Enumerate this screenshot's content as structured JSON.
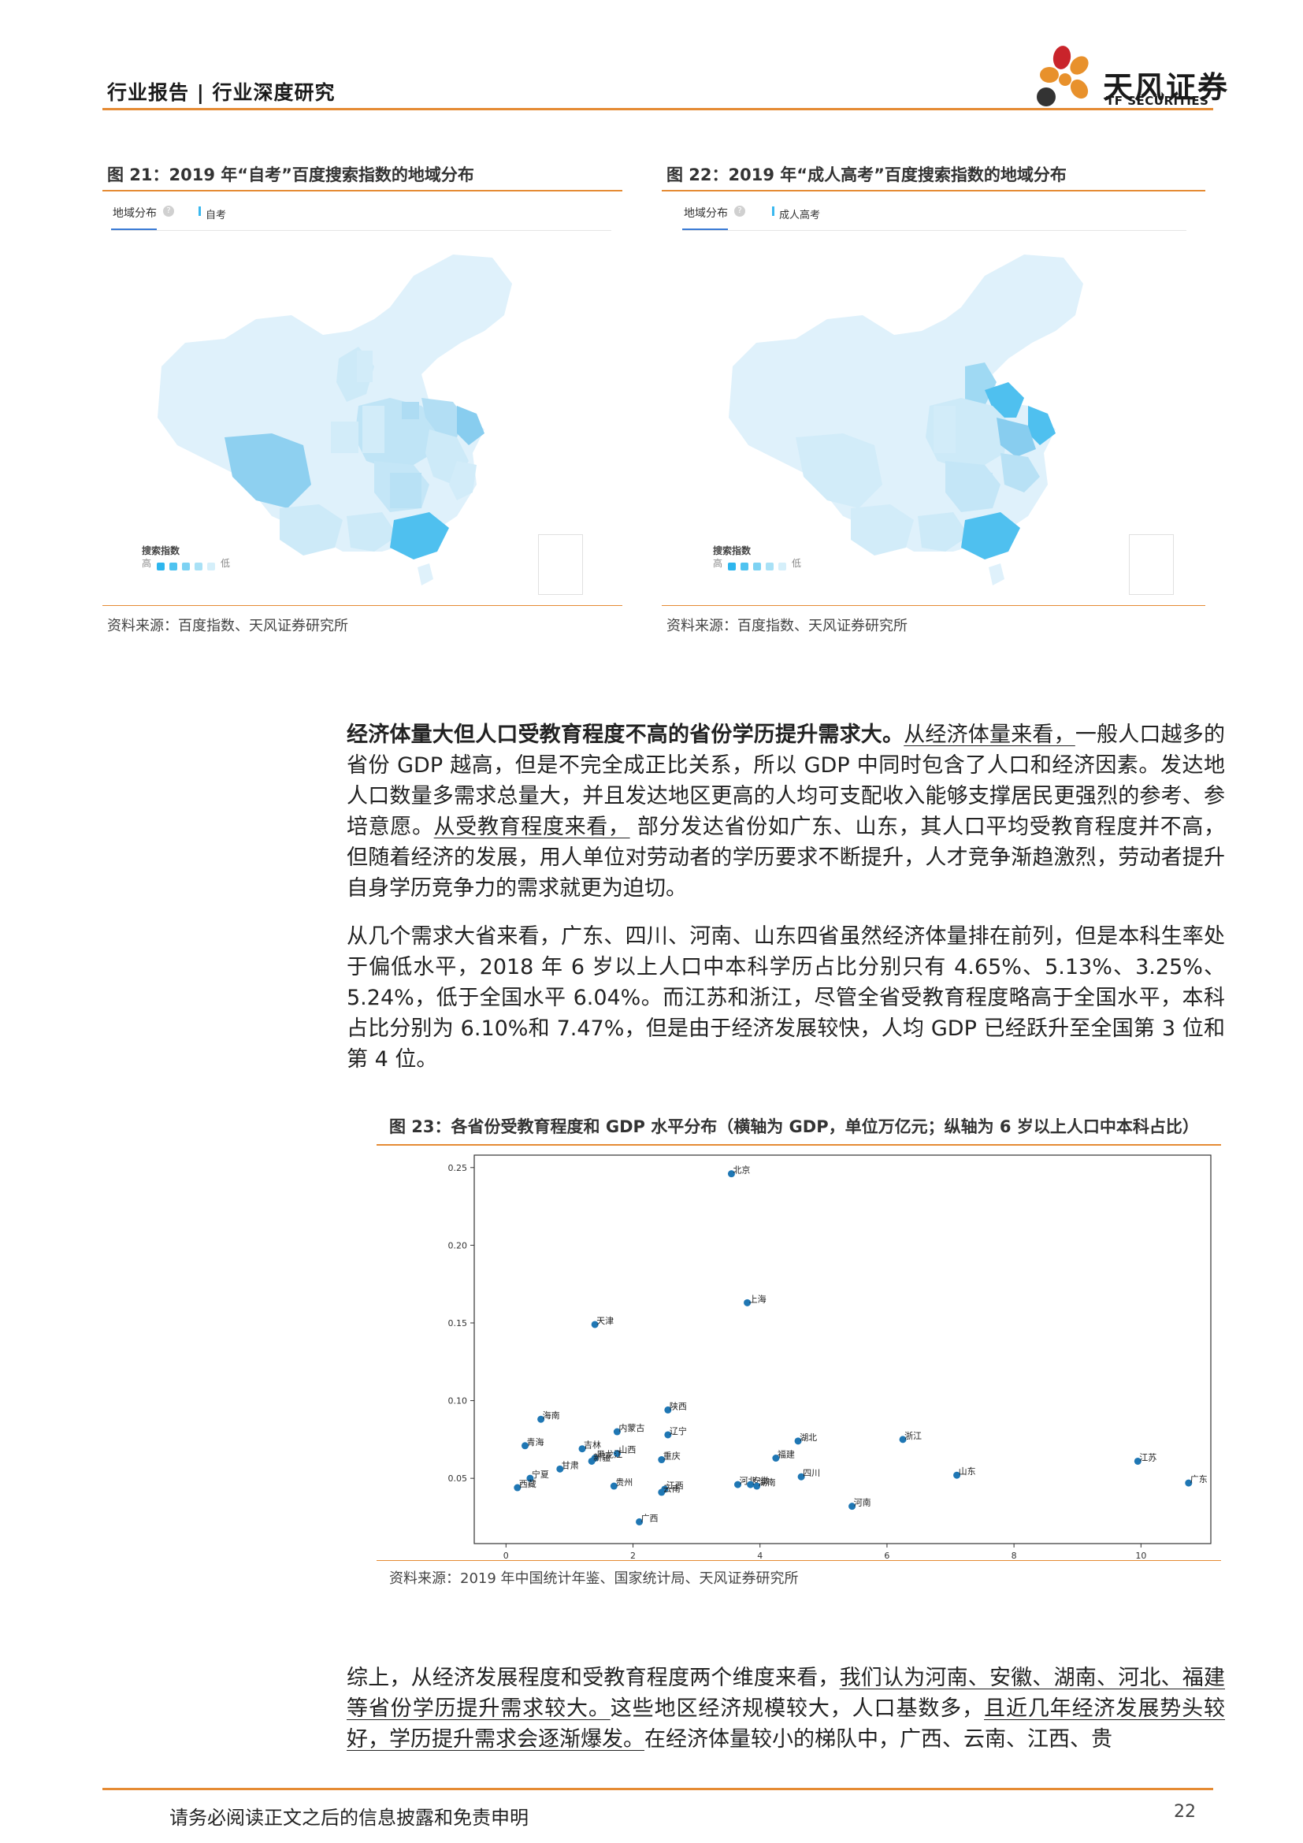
{
  "header": {
    "title": "行业报告 | 行业深度研究",
    "logo_cn": "天风证券",
    "logo_en": "TF SECURITIES"
  },
  "figure21": {
    "title": "图 21：2019 年“自考”百度搜索指数的地域分布",
    "tab_label": "地域分布",
    "series_label": "自考",
    "legend_title": "搜索指数",
    "legend_high": "高",
    "legend_low": "低",
    "source": "资料来源：百度指数、天风证券研究所"
  },
  "figure22": {
    "title": "图 22：2019 年“成人高考”百度搜索指数的地域分布",
    "tab_label": "地域分布",
    "series_label": "成人高考",
    "legend_title": "搜索指数",
    "legend_high": "高",
    "legend_low": "低",
    "source": "资料来源：百度指数、天风证券研究所"
  },
  "body": {
    "p1_bold": "经济体量大但人口受教育程度不高的省份学历提升需求大。",
    "p1_a": "从经济体量来看，",
    "p1_b": "一般人口越多的省份 GDP 越高，但是不完全成正比关系，所以 GDP 中同时包含了人口和经济因素。发达地人口数量多需求总量大，并且发达地区更高的人均可支配收入能够支撑居民更强烈的参考、参培意愿。",
    "p1_c": "从受教育程度来看，",
    "p1_d": " 部分发达省份如广东、山东，其人口平均受教育程度并不高，但随着经济的发展，用人单位对劳动者的学历要求不断提升，人才竞争渐趋激烈，劳动者提升自身学历竞争力的需求就更为迫切。",
    "p2": "从几个需求大省来看，广东、四川、河南、山东四省虽然经济体量排在前列，但是本科生率处于偏低水平，2018 年 6 岁以上人口中本科学历占比分别只有 4.65%、5.13%、3.25%、5.24%，低于全国水平 6.04%。而江苏和浙江，尽管全省受教育程度略高于全国水平，本科占比分别为 6.10%和 7.47%，但是由于经济发展较快，人均 GDP 已经跃升至全国第 3 位和第 4 位。",
    "p3_a": "综上，从经济发展程度和受教育程度两个维度来看，",
    "p3_b": "我们认为河南、安徽、湖南、河北、福建等省份学历提升需求较大。",
    "p3_c": "这些地区经济规模较大，人口基数多，",
    "p3_d": "且近几年经济发展势头较好，学历提升需求会逐渐爆发。",
    "p3_e": "在经济体量较小的梯队中，广西、云南、江西、贵"
  },
  "figure23": {
    "title": "图 23：各省份受教育程度和 GDP 水平分布（横轴为 GDP，单位万亿元；纵轴为 6 岁以上人口中本科占比）",
    "source": "资料来源：2019 年中国统计年鉴、国家统计局、天风证券研究所"
  },
  "chart_data": {
    "type": "scatter",
    "xlim": [
      -0.5,
      11.1
    ],
    "ylim": [
      0.008,
      0.258
    ],
    "xticks": [
      0,
      2,
      4,
      6,
      8,
      10
    ],
    "yticks": [
      0.05,
      0.1,
      0.15,
      0.2,
      0.25
    ],
    "grid": false,
    "point_color": "#1f77b4",
    "points": [
      {
        "label": "北京",
        "x": 3.55,
        "y": 0.246
      },
      {
        "label": "上海",
        "x": 3.8,
        "y": 0.163
      },
      {
        "label": "天津",
        "x": 1.4,
        "y": 0.149
      },
      {
        "label": "海南",
        "x": 0.55,
        "y": 0.088
      },
      {
        "label": "陕西",
        "x": 2.55,
        "y": 0.094
      },
      {
        "label": "内蒙古",
        "x": 1.75,
        "y": 0.08
      },
      {
        "label": "辽宁",
        "x": 2.55,
        "y": 0.078
      },
      {
        "label": "青海",
        "x": 0.3,
        "y": 0.071
      },
      {
        "label": "吉林",
        "x": 1.2,
        "y": 0.069
      },
      {
        "label": "山西",
        "x": 1.75,
        "y": 0.066
      },
      {
        "label": "黑龙江",
        "x": 1.4,
        "y": 0.063
      },
      {
        "label": "新疆",
        "x": 1.35,
        "y": 0.061
      },
      {
        "label": "重庆",
        "x": 2.45,
        "y": 0.062
      },
      {
        "label": "甘肃",
        "x": 0.85,
        "y": 0.056
      },
      {
        "label": "宁夏",
        "x": 0.38,
        "y": 0.05
      },
      {
        "label": "西藏",
        "x": 0.18,
        "y": 0.044
      },
      {
        "label": "贵州",
        "x": 1.7,
        "y": 0.045
      },
      {
        "label": "江西",
        "x": 2.5,
        "y": 0.043
      },
      {
        "label": "云南",
        "x": 2.45,
        "y": 0.041
      },
      {
        "label": "广西",
        "x": 2.1,
        "y": 0.022
      },
      {
        "label": "湖北",
        "x": 4.6,
        "y": 0.074
      },
      {
        "label": "福建",
        "x": 4.25,
        "y": 0.063
      },
      {
        "label": "四川",
        "x": 4.65,
        "y": 0.051
      },
      {
        "label": "河北",
        "x": 3.65,
        "y": 0.046
      },
      {
        "label": "安徽",
        "x": 3.85,
        "y": 0.046
      },
      {
        "label": "湖南",
        "x": 3.95,
        "y": 0.045
      },
      {
        "label": "河南",
        "x": 5.45,
        "y": 0.032
      },
      {
        "label": "浙江",
        "x": 6.25,
        "y": 0.075
      },
      {
        "label": "山东",
        "x": 7.1,
        "y": 0.052
      },
      {
        "label": "江苏",
        "x": 9.95,
        "y": 0.061
      },
      {
        "label": "广东",
        "x": 10.75,
        "y": 0.047
      }
    ]
  },
  "footer": {
    "disclaimer": "请务必阅读正文之后的信息披露和免责申明",
    "page": "22"
  }
}
